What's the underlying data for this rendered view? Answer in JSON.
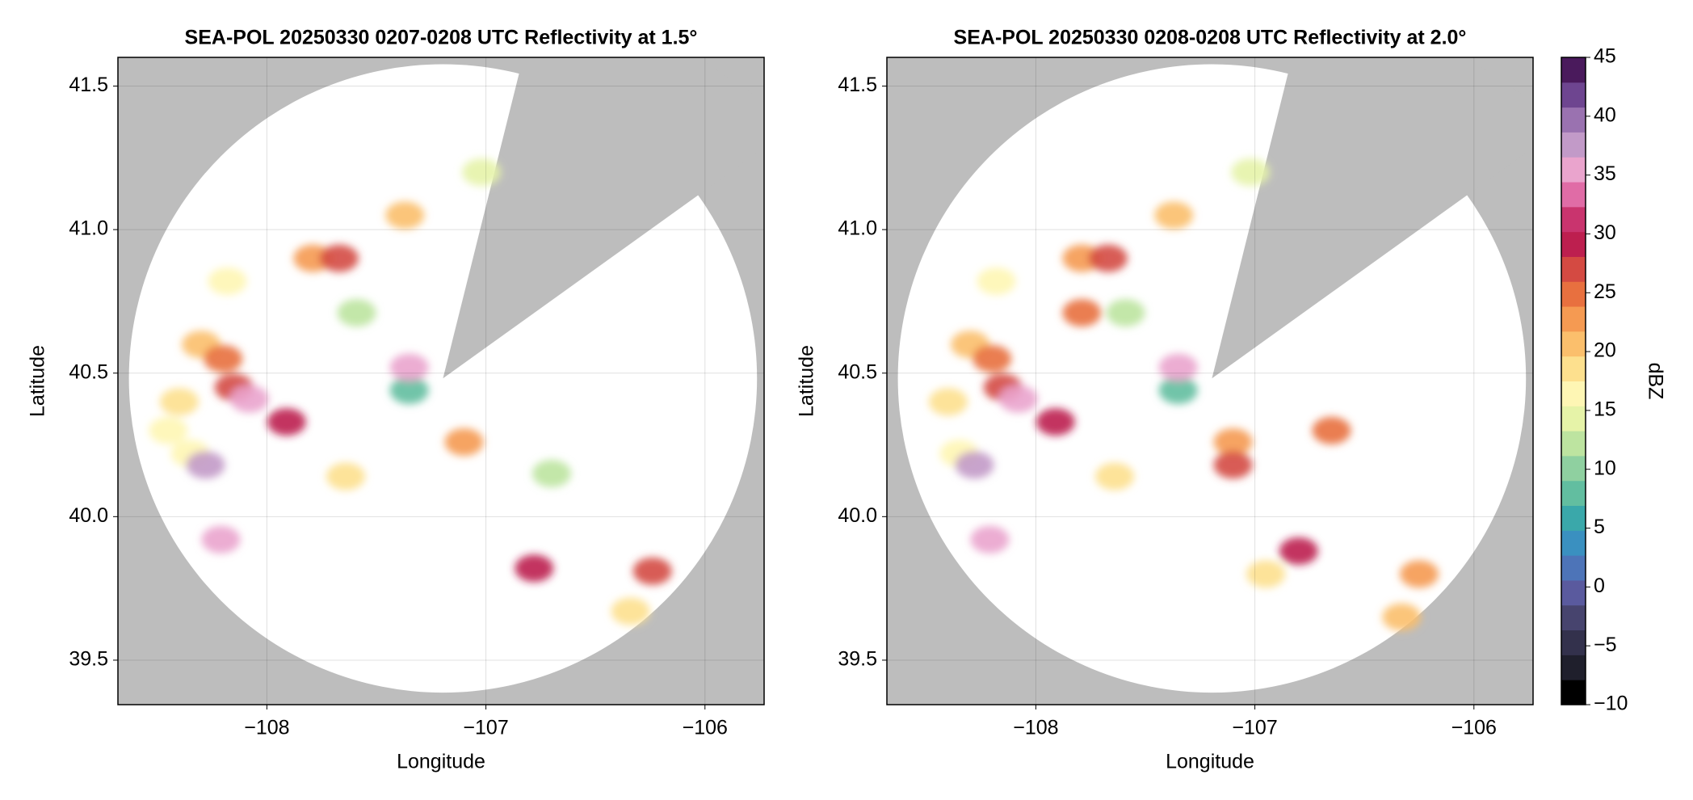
{
  "chart_data": [
    {
      "type": "radar",
      "title": "SEA-POL 20250330 0207-0208 UTC Reflectivity at 1.5°",
      "xlabel": "Longitude",
      "ylabel": "Latitude",
      "xlim": [
        -108.68,
        -105.73
      ],
      "ylim": [
        39.345,
        41.6
      ],
      "xticks": [
        {
          "value": -108,
          "label": "−108"
        },
        {
          "value": -107,
          "label": "−107"
        },
        {
          "value": -106,
          "label": "−106"
        }
      ],
      "yticks": [
        39.5,
        {
          "value": 40,
          "label": "40.0"
        },
        40.5,
        {
          "value": 41,
          "label": "41.0"
        },
        41.5
      ],
      "grid": true,
      "x": [
        -108.3,
        -108.4,
        -108.2,
        -108.35,
        -108.15,
        -108.28,
        -108.21,
        -108.08,
        -107.91,
        -107.79,
        -107.67,
        -107.59,
        -107.35,
        -107.35,
        -107.37,
        -107.1,
        -106.7,
        -106.78,
        -106.24,
        -106.34,
        -107.02,
        -108.18,
        -107.64,
        -108.45
      ],
      "y": [
        40.6,
        40.4,
        40.55,
        40.22,
        40.45,
        40.18,
        39.92,
        40.41,
        40.33,
        40.9,
        40.9,
        40.71,
        40.44,
        40.52,
        41.05,
        40.26,
        40.15,
        39.82,
        39.81,
        39.67,
        41.2,
        40.82,
        40.14,
        40.3
      ],
      "values": [
        20,
        18,
        24,
        17,
        26,
        38,
        36,
        35,
        30,
        22,
        28,
        12,
        8,
        36,
        20,
        22,
        12,
        30,
        28,
        18,
        14,
        16,
        18,
        17
      ]
    },
    {
      "type": "radar",
      "title": "SEA-POL 20250330 0208-0208 UTC Reflectivity at 2.0°",
      "xlabel": "Longitude",
      "ylabel": "Latitude",
      "xlim": [
        -108.68,
        -105.73
      ],
      "ylim": [
        39.345,
        41.6
      ],
      "xticks": [
        {
          "value": -108,
          "label": "−108"
        },
        {
          "value": -107,
          "label": "−107"
        },
        {
          "value": -106,
          "label": "−106"
        }
      ],
      "yticks": [
        39.5,
        {
          "value": 40,
          "label": "40.0"
        },
        40.5,
        {
          "value": 41,
          "label": "41.0"
        },
        41.5
      ],
      "grid": true,
      "x": [
        -108.3,
        -108.4,
        -108.2,
        -108.35,
        -108.15,
        -108.28,
        -108.21,
        -108.08,
        -107.91,
        -107.79,
        -107.67,
        -107.59,
        -107.35,
        -107.35,
        -107.37,
        -107.1,
        -106.8,
        -106.65,
        -106.25,
        -106.33,
        -107.02,
        -108.18,
        -107.64,
        -107.79,
        -107.1,
        -106.95
      ],
      "y": [
        40.6,
        40.4,
        40.55,
        40.22,
        40.45,
        40.18,
        39.92,
        40.41,
        40.33,
        40.9,
        40.9,
        40.71,
        40.44,
        40.52,
        41.05,
        40.26,
        39.88,
        40.3,
        39.8,
        39.65,
        41.2,
        40.82,
        40.14,
        40.71,
        40.18,
        39.8
      ],
      "values": [
        21,
        18,
        25,
        17,
        27,
        38,
        36,
        35,
        30,
        22,
        28,
        12,
        8,
        36,
        20,
        22,
        30,
        24,
        22,
        20,
        14,
        16,
        18,
        24,
        28,
        18
      ]
    },
    {
      "type": "colorbar",
      "label": "dBZ",
      "ylim": [
        -10,
        45
      ],
      "yticks": [
        {
          "value": -10,
          "label": "−10"
        },
        {
          "value": -5,
          "label": "−5"
        },
        0,
        5,
        10,
        15,
        20,
        25,
        30,
        35,
        40,
        45
      ],
      "colors": [
        "#000000",
        "#1f1f2c",
        "#33314c",
        "#47446e",
        "#5a5a9e",
        "#4d74b8",
        "#3a90c0",
        "#3aa8aa",
        "#62bea0",
        "#8fd0a0",
        "#bde4a0",
        "#e6f3a8",
        "#fef6b4",
        "#fde08e",
        "#fbbf6c",
        "#f59a52",
        "#e8703f",
        "#d44a42",
        "#bd1f4f",
        "#c9346e",
        "#e06ca6",
        "#eaa4cd",
        "#c29ac8",
        "#9a72b0",
        "#6e4590",
        "#4a1a5c"
      ]
    }
  ]
}
